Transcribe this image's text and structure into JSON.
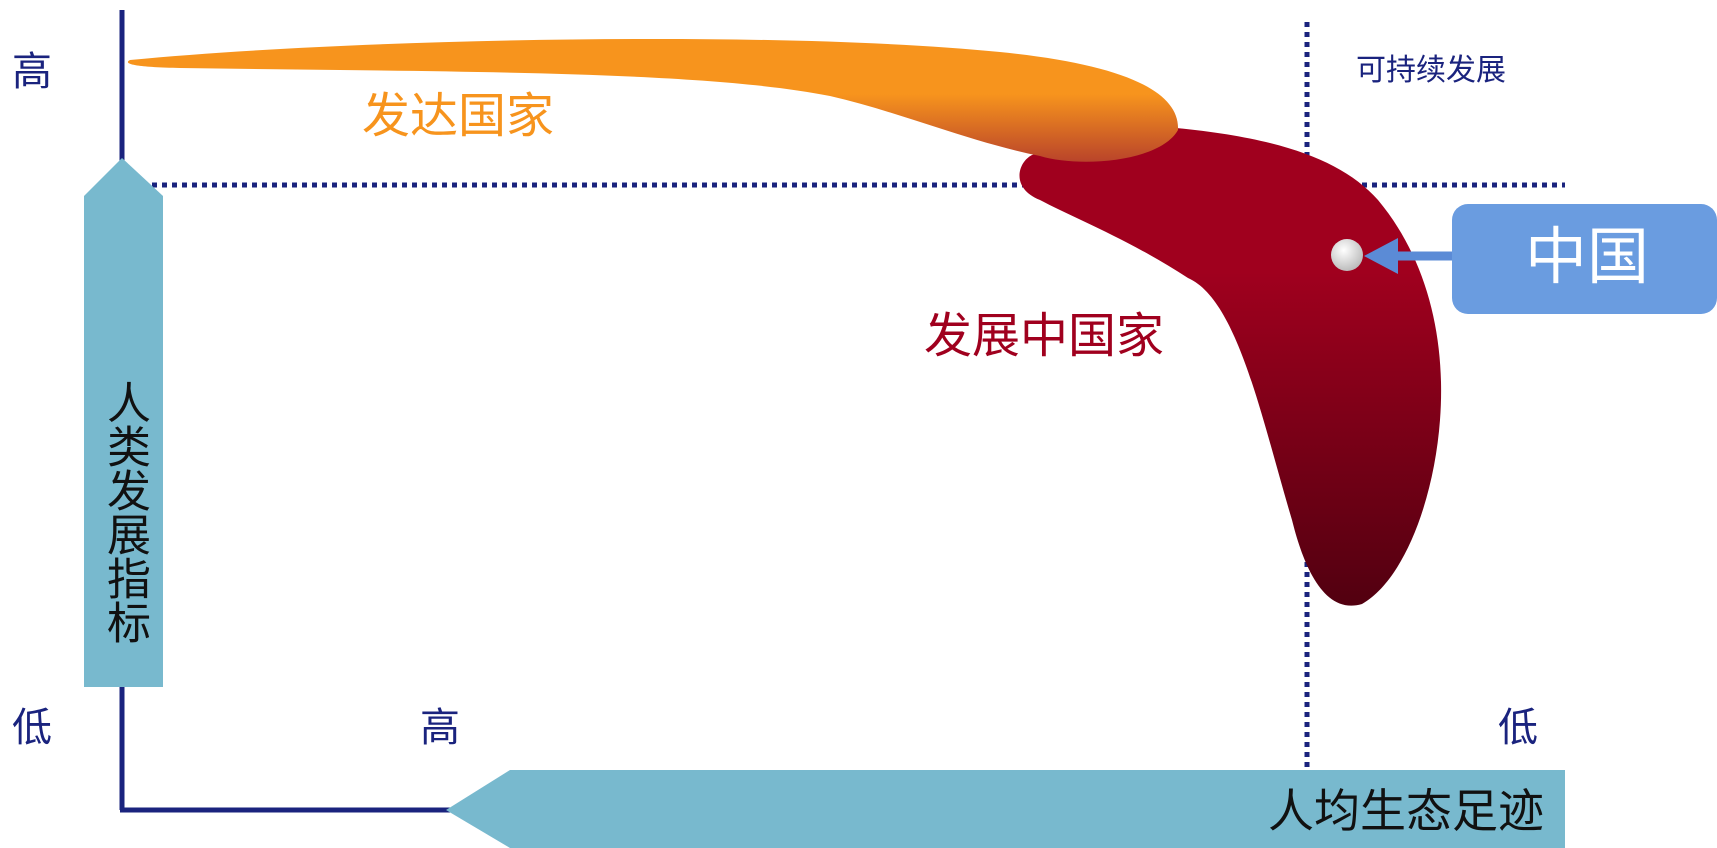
{
  "y_axis": {
    "title": "人类发展指标",
    "high_label": "高",
    "low_label": "低"
  },
  "x_axis": {
    "title": "人均生态足迹",
    "high_label": "高",
    "low_label": "低"
  },
  "regions": {
    "developed": "发达国家",
    "developing": "发展中国家",
    "sustainable": "可持续发展"
  },
  "callout": {
    "label": "中国"
  },
  "colors": {
    "axis": "#1a237e",
    "arrow_fill": "#78b9ce",
    "developed_top": "#f7941d",
    "developed_bottom": "#b9442a",
    "developing_top": "#a0001e",
    "developing_bottom": "#5a0012",
    "callout_box": "#6a9ce0",
    "callout_arrow": "#5b8bd6"
  }
}
